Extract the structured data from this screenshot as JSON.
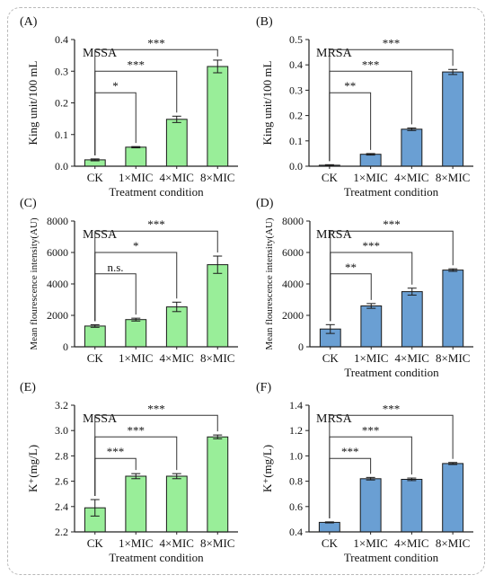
{
  "colors": {
    "mssa_fill": "#99ee99",
    "mrsa_fill": "#6a9fd3",
    "axis": "#222222",
    "frame_border": "#b9b9b9"
  },
  "chart_data": [
    {
      "type": "bar",
      "panel_label": "(A)",
      "strain": "MSSA",
      "bar_color": "#99ee99",
      "categories": [
        "CK",
        "1×MIC",
        "4×MIC",
        "8×MIC"
      ],
      "values": [
        0.02,
        0.06,
        0.148,
        0.315
      ],
      "errors": [
        0.003,
        0.002,
        0.01,
        0.02
      ],
      "ylabel": "King unit/100 mL",
      "xlabel": "Treatment condition",
      "ylim": [
        0,
        0.4
      ],
      "yticks": [
        0.0,
        0.1,
        0.2,
        0.3,
        0.4
      ],
      "ytick_labels": [
        "0.0",
        "0.1",
        "0.2",
        "0.3",
        "0.4"
      ],
      "comparisons": [
        {
          "from": "CK",
          "to": "1×MIC",
          "label": "*"
        },
        {
          "from": "CK",
          "to": "4×MIC",
          "label": "***"
        },
        {
          "from": "CK",
          "to": "8×MIC",
          "label": "***"
        }
      ]
    },
    {
      "type": "bar",
      "panel_label": "(B)",
      "strain": "MRSA",
      "bar_color": "#6a9fd3",
      "categories": [
        "CK",
        "1×MIC",
        "4×MIC",
        "8×MIC"
      ],
      "values": [
        0.004,
        0.047,
        0.146,
        0.372
      ],
      "errors": [
        0.002,
        0.003,
        0.005,
        0.01
      ],
      "ylabel": "King unit/100 mL",
      "xlabel": "Treatment condition",
      "ylim": [
        0,
        0.5
      ],
      "yticks": [
        0.0,
        0.1,
        0.2,
        0.3,
        0.4,
        0.5
      ],
      "ytick_labels": [
        "0.0",
        "0.1",
        "0.2",
        "0.3",
        "0.4",
        "0.5"
      ],
      "comparisons": [
        {
          "from": "CK",
          "to": "1×MIC",
          "label": "**"
        },
        {
          "from": "CK",
          "to": "4×MIC",
          "label": "***"
        },
        {
          "from": "CK",
          "to": "8×MIC",
          "label": "***"
        }
      ]
    },
    {
      "type": "bar",
      "panel_label": "(C)",
      "strain": "MSSA",
      "bar_color": "#99ee99",
      "categories": [
        "CK",
        "1×MIC",
        "4×MIC",
        "8×MIC"
      ],
      "values": [
        1320,
        1730,
        2540,
        5220
      ],
      "errors": [
        80,
        90,
        300,
        550
      ],
      "ylabel": "Mean flourescence intensity(AU)",
      "xlabel": "",
      "ylim": [
        0,
        8000
      ],
      "yticks": [
        0,
        2000,
        4000,
        6000,
        8000
      ],
      "ytick_labels": [
        "0",
        "2000",
        "4000",
        "6000",
        "8000"
      ],
      "comparisons": [
        {
          "from": "CK",
          "to": "1×MIC",
          "label": "n.s."
        },
        {
          "from": "CK",
          "to": "4×MIC",
          "label": "*"
        },
        {
          "from": "CK",
          "to": "8×MIC",
          "label": "***"
        }
      ]
    },
    {
      "type": "bar",
      "panel_label": "(D)",
      "strain": "MRSA",
      "bar_color": "#6a9fd3",
      "categories": [
        "CK",
        "1×MIC",
        "4×MIC",
        "8×MIC"
      ],
      "values": [
        1130,
        2600,
        3510,
        4880
      ],
      "errors": [
        280,
        150,
        220,
        80
      ],
      "ylabel": "Mean flourescence intensity(AU)",
      "xlabel": "Treatment condition",
      "ylim": [
        0,
        8000
      ],
      "yticks": [
        0,
        2000,
        4000,
        6000,
        8000
      ],
      "ytick_labels": [
        "0",
        "2000",
        "4000",
        "6000",
        "8000"
      ],
      "comparisons": [
        {
          "from": "CK",
          "to": "1×MIC",
          "label": "**"
        },
        {
          "from": "CK",
          "to": "4×MIC",
          "label": "***"
        },
        {
          "from": "CK",
          "to": "8×MIC",
          "label": "***"
        }
      ]
    },
    {
      "type": "bar",
      "panel_label": "(E)",
      "strain": "MSSA",
      "bar_color": "#99ee99",
      "categories": [
        "CK",
        "1×MIC",
        "4×MIC",
        "8×MIC"
      ],
      "values": [
        2.39,
        2.64,
        2.64,
        2.95
      ],
      "errors": [
        0.065,
        0.02,
        0.02,
        0.015
      ],
      "ylabel": "K⁺(mg/L)",
      "xlabel": "Treatment condition",
      "ylim": [
        2.2,
        3.2
      ],
      "yticks": [
        2.2,
        2.4,
        2.6,
        2.8,
        3.0,
        3.2
      ],
      "ytick_labels": [
        "2.2",
        "2.4",
        "2.6",
        "2.8",
        "3.0",
        "3.2"
      ],
      "comparisons": [
        {
          "from": "CK",
          "to": "1×MIC",
          "label": "***"
        },
        {
          "from": "CK",
          "to": "4×MIC",
          "label": "***"
        },
        {
          "from": "CK",
          "to": "8×MIC",
          "label": "***"
        }
      ]
    },
    {
      "type": "bar",
      "panel_label": "(F)",
      "strain": "MRSA",
      "bar_color": "#6a9fd3",
      "categories": [
        "CK",
        "1×MIC",
        "4×MIC",
        "8×MIC"
      ],
      "values": [
        0.475,
        0.82,
        0.815,
        0.94
      ],
      "errors": [
        0.004,
        0.01,
        0.01,
        0.008
      ],
      "ylabel": "K⁺(mg/L)",
      "xlabel": "Treatment condition",
      "ylim": [
        0.4,
        1.4
      ],
      "yticks": [
        0.4,
        0.6,
        0.8,
        1.0,
        1.2,
        1.4
      ],
      "ytick_labels": [
        "0.4",
        "0.6",
        "0.8",
        "1.0",
        "1.2",
        "1.4"
      ],
      "comparisons": [
        {
          "from": "CK",
          "to": "1×MIC",
          "label": "***"
        },
        {
          "from": "CK",
          "to": "4×MIC",
          "label": "***"
        },
        {
          "from": "CK",
          "to": "8×MIC",
          "label": "***"
        }
      ]
    }
  ]
}
